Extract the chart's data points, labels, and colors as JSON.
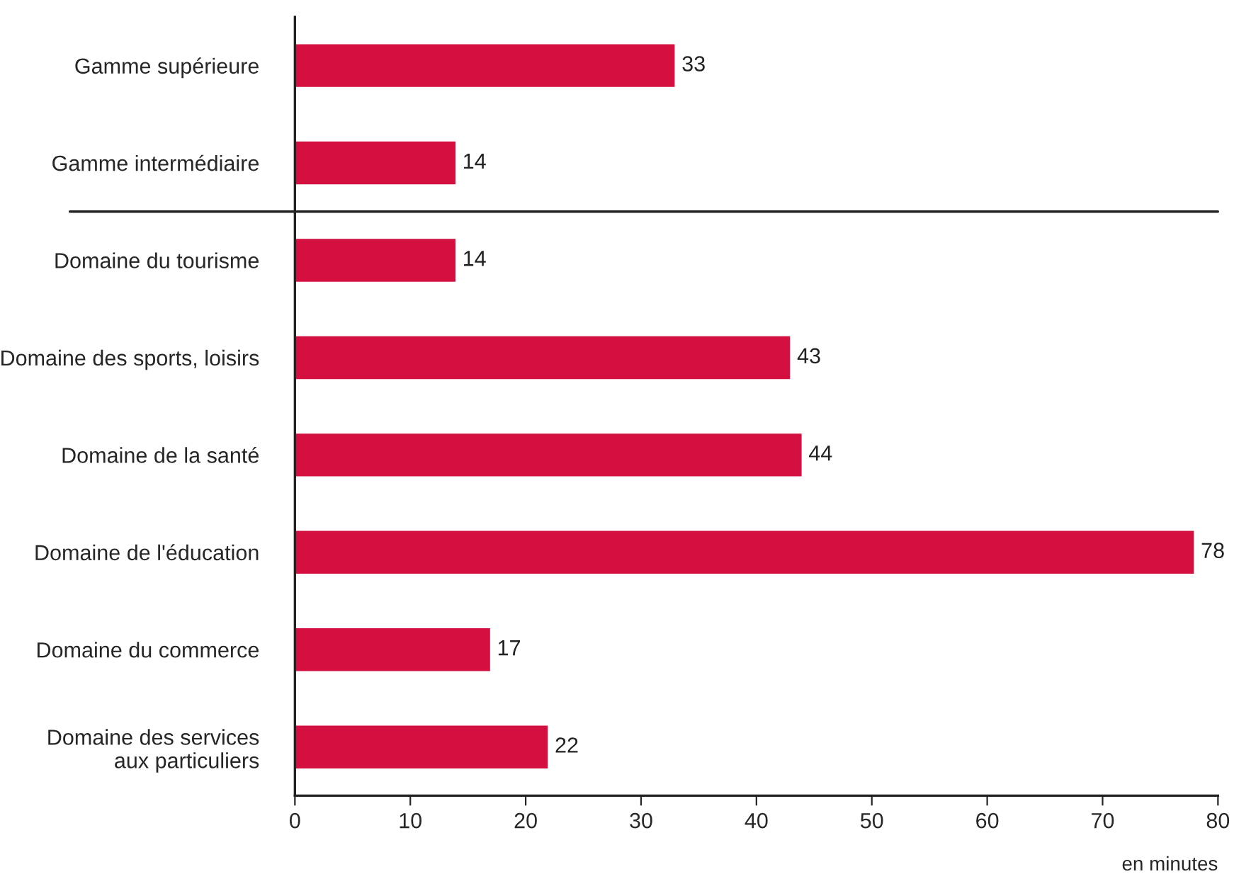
{
  "chart_data": {
    "type": "bar",
    "orientation": "horizontal",
    "categories": [
      "Gamme supérieure",
      "Gamme intermédiaire",
      "Domaine du tourisme",
      "Domaine des sports, loisirs",
      "Domaine de la santé",
      "Domaine de l'éducation",
      "Domaine du commerce",
      "Domaine des services\naux particuliers"
    ],
    "values": [
      33,
      14,
      14,
      43,
      44,
      78,
      17,
      22
    ],
    "color": "#d31040",
    "xlim": [
      0,
      80
    ],
    "xticks": [
      0,
      10,
      20,
      30,
      40,
      50,
      60,
      70,
      80
    ],
    "xlabel": "en minutes",
    "data_labels": true,
    "grid": false,
    "legend": false
  }
}
